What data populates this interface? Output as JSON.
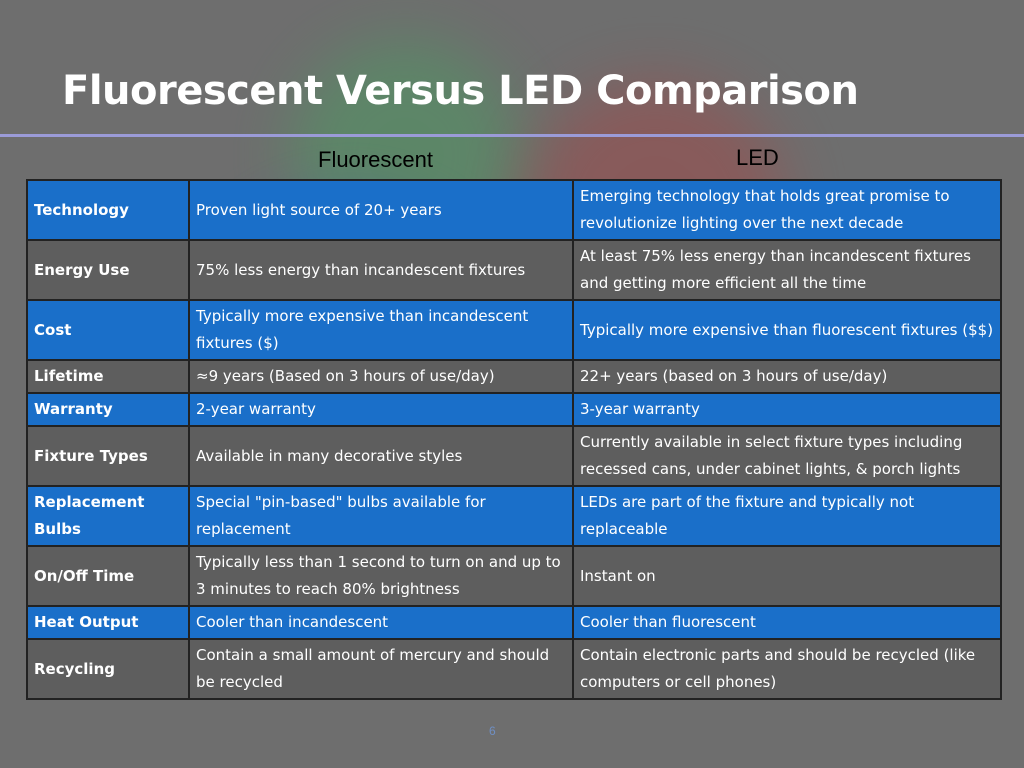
{
  "slide": {
    "title": "Fluorescent Versus LED Comparison",
    "page_number": "6"
  },
  "columns": {
    "fluorescent": "Fluorescent",
    "led": "LED"
  },
  "rows": [
    {
      "label": "Technology",
      "fluorescent": "Proven light source of 20+ years",
      "led": "Emerging technology that holds great promise to revolutionize lighting over the next decade",
      "style": "blue"
    },
    {
      "label": "Energy Use",
      "fluorescent": "75% less energy than incandescent fixtures",
      "led": "At least 75% less energy than incandescent fixtures and getting more efficient all the time",
      "style": "gray"
    },
    {
      "label": "Cost",
      "fluorescent": "Typically more expensive than incandescent fixtures ($)",
      "led": "Typically more expensive than fluorescent fixtures ($$)",
      "style": "blue"
    },
    {
      "label": "Lifetime",
      "fluorescent": "≈9 years (Based on 3 hours of use/day)",
      "led": "22+ years (based on 3 hours of use/day)",
      "style": "gray"
    },
    {
      "label": "Warranty",
      "fluorescent": "2-year warranty",
      "led": "3-year warranty",
      "style": "blue"
    },
    {
      "label": "Fixture Types",
      "fluorescent": "Available in many decorative styles",
      "led": "Currently available in select fixture types including recessed cans, under cabinet lights, & porch lights",
      "style": "gray"
    },
    {
      "label": "Replacement Bulbs",
      "fluorescent": "Special \"pin-based\" bulbs available for replacement",
      "led": "LEDs are part of the fixture and typically not replaceable",
      "style": "blue"
    },
    {
      "label": "On/Off Time",
      "fluorescent": "Typically less than 1 second to turn on and up to 3 minutes to reach 80% brightness",
      "led": "Instant on",
      "style": "gray"
    },
    {
      "label": "Heat Output",
      "fluorescent": "Cooler than incandescent",
      "led": "Cooler than fluorescent",
      "style": "blue"
    },
    {
      "label": "Recycling",
      "fluorescent": "Contain a small amount of mercury and should be recycled",
      "led": "Contain electronic parts and should be recycled (like computers or cell phones)",
      "style": "gray"
    }
  ],
  "colors": {
    "row_blue": "#1a6fc9",
    "row_gray": "#5e5e5e",
    "background": "#6e6e6e",
    "title_rule": "#9b9bd8"
  }
}
